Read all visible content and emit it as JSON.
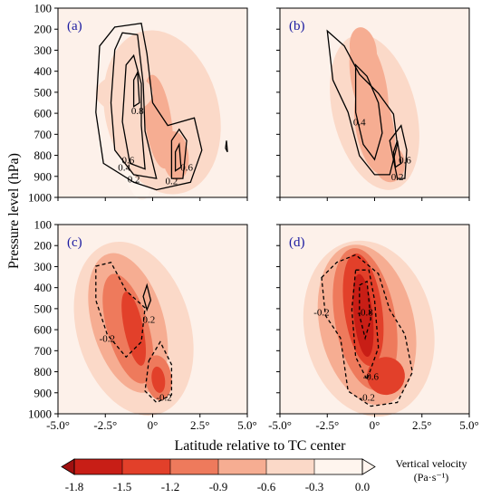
{
  "chart_data": [
    {
      "type": "heatmap",
      "panel_label": "(a)",
      "xlim": [
        -5,
        5
      ],
      "ylim": [
        1000,
        100
      ],
      "contour_labels": [
        "0.8",
        "0.6",
        "0.4",
        "0.2",
        "0.6",
        "0.2"
      ],
      "shading_max": -0.9
    },
    {
      "type": "heatmap",
      "panel_label": "(b)",
      "xlim": [
        -5,
        5
      ],
      "ylim": [
        1000,
        100
      ],
      "contour_labels": [
        "0.4",
        "0.6",
        "0.2"
      ],
      "shading_max": -0.9
    },
    {
      "type": "heatmap",
      "panel_label": "(c)",
      "xlim": [
        -5,
        5
      ],
      "ylim": [
        1000,
        100
      ],
      "contour_labels": [
        "0.2",
        "-0.2",
        "-0.2"
      ],
      "shading_max": -1.2
    },
    {
      "type": "heatmap",
      "panel_label": "(d)",
      "xlim": [
        -5,
        5
      ],
      "ylim": [
        1000,
        100
      ],
      "contour_labels": [
        "-0.2",
        "-0.8",
        "-0.6",
        "-0.2"
      ],
      "shading_max": -1.5
    }
  ],
  "axes": {
    "ylabel": "Pressure level (hPa)",
    "xlabel": "Latitude relative to TC center",
    "y_ticks": [
      "100",
      "200",
      "300",
      "400",
      "500",
      "600",
      "700",
      "800",
      "900",
      "1000"
    ],
    "x_ticks": [
      "-5.0°",
      "-2.5°",
      "0°",
      "2.5°",
      "5.0°"
    ]
  },
  "colorbar": {
    "title_line1": "Vertical velocity",
    "title_line2": "(Pa·s⁻¹)",
    "tick_labels": [
      "-1.8",
      "-1.5",
      "-1.2",
      "-0.9",
      "-0.6",
      "-0.3",
      "0.0"
    ],
    "colors": [
      "#a01010",
      "#c81e16",
      "#e2402a",
      "#ee7a5c",
      "#f6ad92",
      "#fbd9c8",
      "#fff5ee"
    ]
  }
}
